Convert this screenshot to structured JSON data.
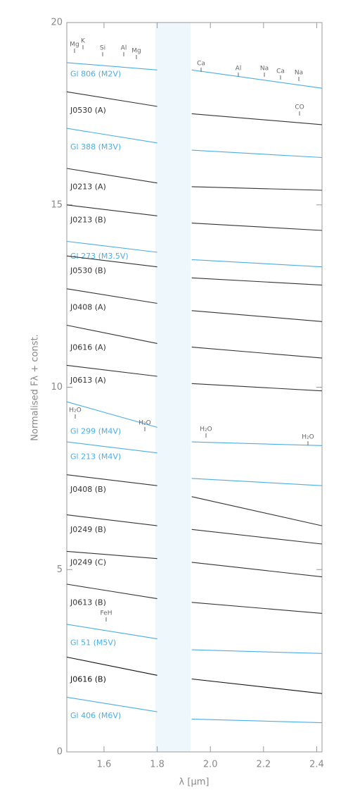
{
  "chart_data": {
    "type": "line",
    "xlabel": "λ [μm]",
    "ylabel": "Normalised Fλ + const.",
    "x": [
      1.46,
      1.8,
      1.87,
      1.93,
      2.42
    ],
    "xlim": [
      1.46,
      2.42
    ],
    "ylim": [
      0,
      20
    ],
    "xticks": [
      1.6,
      1.8,
      {
        "value": 2,
        "label": "2.0"
      },
      2.2,
      2.4
    ],
    "yticks": [
      0,
      5,
      10,
      15,
      20
    ],
    "series": [
      {
        "name": "Gl 806 (M2V)",
        "color": "#4aaee6",
        "values": [
          18.9,
          18.7,
          null,
          18.7,
          18.2
        ]
      },
      {
        "name": "J0530 (A)",
        "color": "#333333",
        "values": [
          18.1,
          17.7,
          null,
          17.5,
          17.2
        ]
      },
      {
        "name": "Gl 388 (M3V)",
        "color": "#4aaee6",
        "values": [
          17.1,
          16.7,
          null,
          16.5,
          16.3
        ]
      },
      {
        "name": "J0213 (A)",
        "color": "#333333",
        "values": [
          16.0,
          15.6,
          null,
          15.5,
          15.4
        ]
      },
      {
        "name": "J0213 (B)",
        "color": "#333333",
        "values": [
          15.0,
          14.7,
          null,
          14.5,
          14.3
        ]
      },
      {
        "name": "Gl 273 (M3.5V)",
        "color": "#4aaee6",
        "values": [
          14.0,
          13.7,
          null,
          13.5,
          13.3
        ]
      },
      {
        "name": "J0530 (B)",
        "color": "#333333",
        "values": [
          13.6,
          13.3,
          null,
          13.0,
          12.8
        ]
      },
      {
        "name": "J0408 (A)",
        "color": "#333333",
        "values": [
          12.7,
          12.3,
          null,
          12.1,
          11.8
        ]
      },
      {
        "name": "J0616 (A)",
        "color": "#333333",
        "values": [
          11.7,
          11.2,
          null,
          11.1,
          10.8
        ]
      },
      {
        "name": "J0613 (A)",
        "color": "#333333",
        "values": [
          10.6,
          10.3,
          null,
          10.1,
          9.9
        ]
      },
      {
        "name": "Gl 299 (M4V)",
        "color": "#4aaee6",
        "values": [
          9.6,
          8.9,
          null,
          8.5,
          8.4
        ]
      },
      {
        "name": "Gl 213 (M4V)",
        "color": "#4aaee6",
        "values": [
          8.5,
          8.2,
          null,
          7.5,
          7.3
        ]
      },
      {
        "name": "J0408 (B)",
        "color": "#333333",
        "values": [
          7.6,
          7.3,
          null,
          7.0,
          6.2
        ]
      },
      {
        "name": "J0249 (B)",
        "color": "#333333",
        "values": [
          6.5,
          6.2,
          null,
          6.1,
          5.7
        ]
      },
      {
        "name": "J0249 (C)",
        "color": "#333333",
        "values": [
          5.5,
          5.3,
          null,
          5.2,
          4.8
        ]
      },
      {
        "name": "J0613 (B)",
        "color": "#333333",
        "values": [
          4.6,
          4.2,
          null,
          4.1,
          3.8
        ]
      },
      {
        "name": "Gl 51 (M5V)",
        "color": "#4aaee6",
        "values": [
          3.5,
          3.1,
          null,
          2.8,
          2.7
        ]
      },
      {
        "name": "J0616 (B)",
        "color": "#111111",
        "values": [
          2.6,
          2.1,
          null,
          2.0,
          1.6
        ]
      },
      {
        "name": "Gl 406 (M6V)",
        "color": "#4aaee6",
        "values": [
          1.5,
          1.1,
          null,
          0.9,
          0.8
        ]
      }
    ],
    "annotations": [
      "Mg",
      "K",
      "Si",
      "Al",
      "Mg",
      "Ca",
      "Al",
      "Na",
      "Ca",
      "Na",
      "CO",
      "H₂O",
      "H₂O",
      "H₂O",
      "H₂O",
      "FeH"
    ]
  }
}
